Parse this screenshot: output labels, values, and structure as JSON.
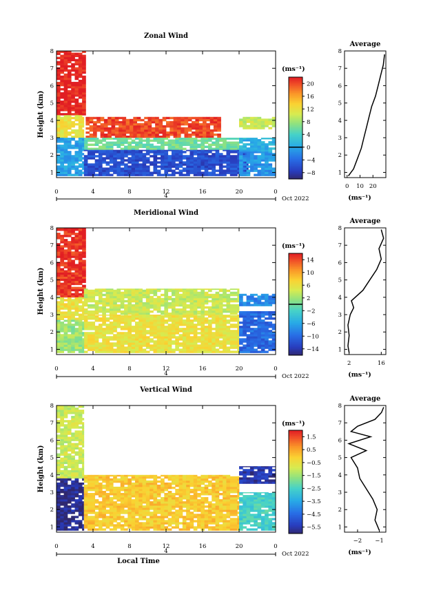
{
  "chart_data": [
    {
      "type": "heatmap",
      "title": "Zonal Wind",
      "xlabel": "",
      "ylabel": "Height (km)",
      "xlim": [
        0,
        24
      ],
      "ylim": [
        0.7,
        8
      ],
      "xticks": [
        "0",
        "4",
        "8",
        "12",
        "16",
        "20",
        "0"
      ],
      "yticks": [
        "1",
        "2",
        "3",
        "4",
        "5",
        "6",
        "7",
        "8"
      ],
      "date_label": "Oct 2022",
      "day_label": "4",
      "colorbar": {
        "unit": "(ms⁻¹)",
        "min": -10,
        "max": 22,
        "contour_at": 0,
        "tick_values": [
          20,
          16,
          12,
          8,
          4,
          0,
          -4,
          -8
        ],
        "tick_labels": [
          "20",
          "16",
          "12",
          "8",
          "4",
          "0",
          "−4",
          "−8"
        ]
      },
      "field_regions": [
        {
          "t0": 0,
          "t1": 3.2,
          "h0": 4.3,
          "h1": 8.0,
          "v": 22
        },
        {
          "t0": 3.2,
          "t1": 18,
          "h0": 3.0,
          "h1": 4.2,
          "v": 20
        },
        {
          "t0": 0,
          "t1": 3,
          "h0": 3.0,
          "h1": 4.3,
          "v": 12
        },
        {
          "t0": 3,
          "t1": 20,
          "h0": 2.3,
          "h1": 3.0,
          "v": 6
        },
        {
          "t0": 0,
          "t1": 3,
          "h0": 0.8,
          "h1": 3.0,
          "v": 0
        },
        {
          "t0": 3,
          "t1": 21,
          "h0": 0.8,
          "h1": 2.3,
          "v": -6
        },
        {
          "t0": 20,
          "t1": 24,
          "h0": 2.2,
          "h1": 3.0,
          "v": 1
        },
        {
          "t0": 20,
          "t1": 24,
          "h0": 0.8,
          "h1": 2.2,
          "v": -1
        },
        {
          "t0": 20,
          "t1": 24,
          "h0": 3.5,
          "h1": 4.2,
          "v": 10
        }
      ],
      "average_profile": {
        "title": "Average",
        "xlabel": "(ms⁻¹)",
        "xlim": [
          -2,
          30
        ],
        "xticks": [
          0,
          10,
          20
        ],
        "xtick_labels": [
          "0",
          "10",
          "20"
        ],
        "heights": [
          0.8,
          1.2,
          1.8,
          2.4,
          3.0,
          3.6,
          4.2,
          4.8,
          5.4,
          6.0,
          6.6,
          7.2,
          7.8
        ],
        "values": [
          1,
          5,
          8,
          11,
          13,
          15,
          17,
          19,
          22,
          24,
          26,
          28,
          29
        ]
      }
    },
    {
      "type": "heatmap",
      "title": "Meridional Wind",
      "xlabel": "",
      "ylabel": "Height (km)",
      "xlim": [
        0,
        24
      ],
      "ylim": [
        0.7,
        8
      ],
      "xticks": [
        "0",
        "4",
        "8",
        "12",
        "16",
        "20",
        "0"
      ],
      "yticks": [
        "1",
        "2",
        "3",
        "4",
        "5",
        "6",
        "7",
        "8"
      ],
      "date_label": "Oct 2022",
      "day_label": "4",
      "colorbar": {
        "unit": "(ms⁻¹)",
        "min": -16,
        "max": 16,
        "contour_at": 0,
        "tick_values": [
          14,
          10,
          6,
          2,
          -2,
          -6,
          -10,
          -14
        ],
        "tick_labels": [
          "14",
          "10",
          "6",
          "2",
          "−2",
          "−6",
          "−10",
          "−14"
        ]
      },
      "field_regions": [
        {
          "t0": 0,
          "t1": 3.2,
          "h0": 4.0,
          "h1": 8.0,
          "v": 15
        },
        {
          "t0": 3,
          "t1": 20,
          "h0": 3.0,
          "h1": 4.5,
          "v": 4
        },
        {
          "t0": 0,
          "t1": 3,
          "h0": 2.7,
          "h1": 4.0,
          "v": 6
        },
        {
          "t0": 3,
          "t1": 20,
          "h0": 0.8,
          "h1": 3.0,
          "v": 6
        },
        {
          "t0": 0,
          "t1": 3,
          "h0": 0.8,
          "h1": 2.7,
          "v": 2
        },
        {
          "t0": 20,
          "t1": 24,
          "h0": 0.8,
          "h1": 3.2,
          "v": -10
        },
        {
          "t0": 20,
          "t1": 24,
          "h0": 3.5,
          "h1": 4.2,
          "v": -8
        }
      ],
      "average_profile": {
        "title": "Average",
        "xlabel": "(ms⁻¹)",
        "xlim": [
          0,
          18
        ],
        "xticks": [
          2,
          16
        ],
        "xtick_labels": [
          "2",
          "16"
        ],
        "heights": [
          0.8,
          1.2,
          1.8,
          2.4,
          3.0,
          3.4,
          3.8,
          4.4,
          5.0,
          5.6,
          6.2,
          6.8,
          7.4,
          7.9
        ],
        "values": [
          2,
          1.5,
          2,
          1.5,
          2.5,
          4,
          3,
          8,
          11,
          14,
          16,
          15,
          17,
          16
        ]
      }
    },
    {
      "type": "heatmap",
      "title": "Vertical Wind",
      "xlabel": "Local Time",
      "ylabel": "Height (km)",
      "xlim": [
        0,
        24
      ],
      "ylim": [
        0.7,
        8
      ],
      "xticks": [
        "0",
        "4",
        "8",
        "12",
        "16",
        "20",
        "0"
      ],
      "yticks": [
        "1",
        "2",
        "3",
        "4",
        "5",
        "6",
        "7",
        "8"
      ],
      "date_label": "Oct 2022",
      "day_label": "4",
      "colorbar": {
        "unit": "(ms⁻¹)",
        "min": -6.0,
        "max": 2.0,
        "tick_values": [
          1.5,
          0.5,
          -0.5,
          -1.5,
          -2.5,
          -3.5,
          -4.5,
          -5.5
        ],
        "tick_labels": [
          "1.5",
          "0.5",
          "−0.5",
          "−1.5",
          "−2.5",
          "−3.5",
          "−4.5",
          "−5.5"
        ]
      },
      "field_regions": [
        {
          "t0": 0,
          "t1": 3,
          "h0": 3.8,
          "h1": 8.0,
          "v": -1.0
        },
        {
          "t0": 0,
          "t1": 3,
          "h0": 0.8,
          "h1": 3.8,
          "v": -5.8
        },
        {
          "t0": 3,
          "t1": 20,
          "h0": 0.8,
          "h1": 4.0,
          "v": 0.0
        },
        {
          "t0": 20,
          "t1": 24,
          "h0": 0.8,
          "h1": 3.0,
          "v": -2.5
        },
        {
          "t0": 20,
          "t1": 24,
          "h0": 3.5,
          "h1": 4.5,
          "v": -5.5
        }
      ],
      "average_profile": {
        "title": "Average",
        "xlabel": "(ms⁻¹)",
        "xlim": [
          -2.6,
          -0.7
        ],
        "xticks": [
          -2,
          -1
        ],
        "xtick_labels": [
          "−2",
          "−1"
        ],
        "heights": [
          0.8,
          1.4,
          2.0,
          2.6,
          3.2,
          3.8,
          4.4,
          5.0,
          5.4,
          5.8,
          6.2,
          6.5,
          6.8,
          7.2,
          7.6,
          7.9
        ],
        "values": [
          -1.0,
          -1.2,
          -1.1,
          -1.3,
          -1.6,
          -1.9,
          -2.0,
          -2.3,
          -1.6,
          -2.4,
          -1.4,
          -2.3,
          -2.0,
          -1.2,
          -0.9,
          -0.8
        ]
      }
    }
  ]
}
